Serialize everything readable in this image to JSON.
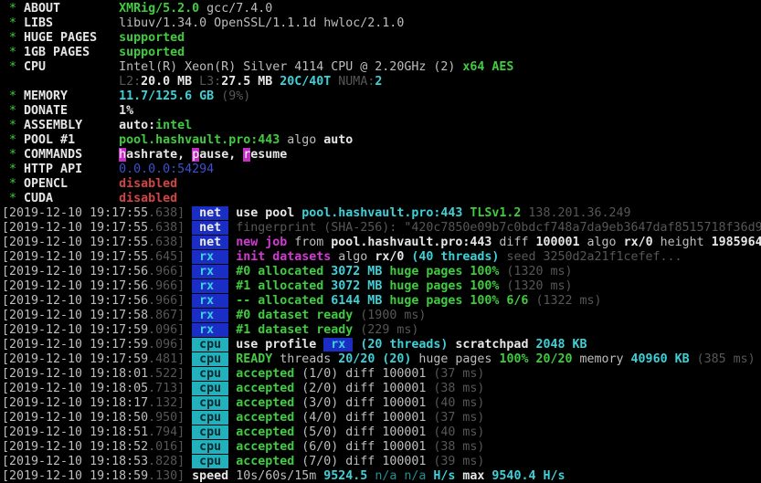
{
  "terminal": {
    "palette": {
      "background": "#000000",
      "foreground": "#bebebe",
      "green": "#3fcc3f",
      "cyan": "#3cd2d9",
      "dark_cyan": "#1f9097",
      "magenta": "#d23bd2",
      "red": "#d04545",
      "gray": "#575757",
      "blue": "#3c50d0",
      "badge_blue_bg": "#1a2ec6",
      "badge_cyan_bg": "#21b2bd",
      "highlight_magenta_bg": "#c32ec3"
    },
    "lines": [
      {
        "name": "header-about",
        "segments": [
          {
            "t": " * ",
            "c": "g"
          },
          {
            "t": "ABOUT        ",
            "c": "W"
          },
          {
            "t": "XMRig/5.2.0",
            "c": "G"
          },
          {
            "t": " gcc/7.4.0",
            "c": "w"
          }
        ]
      },
      {
        "name": "header-libs",
        "segments": [
          {
            "t": " * ",
            "c": "g"
          },
          {
            "t": "LIBS         ",
            "c": "W"
          },
          {
            "t": "libuv/1.34.0 OpenSSL/1.1.1d hwloc/2.1.0",
            "c": "w"
          }
        ]
      },
      {
        "name": "header-huge-pages",
        "segments": [
          {
            "t": " * ",
            "c": "g"
          },
          {
            "t": "HUGE PAGES   ",
            "c": "W"
          },
          {
            "t": "supported",
            "c": "G"
          }
        ]
      },
      {
        "name": "header-1gb-pages",
        "segments": [
          {
            "t": " * ",
            "c": "g"
          },
          {
            "t": "1GB PAGES    ",
            "c": "W"
          },
          {
            "t": "supported",
            "c": "G"
          }
        ]
      },
      {
        "name": "header-cpu",
        "segments": [
          {
            "t": " * ",
            "c": "g"
          },
          {
            "t": "CPU          ",
            "c": "W"
          },
          {
            "t": "Intel(R) Xeon(R) Silver 4114 CPU @ 2.20GHz (2) ",
            "c": "w"
          },
          {
            "t": "x64 AES",
            "c": "G"
          }
        ]
      },
      {
        "name": "header-cpu-cache",
        "segments": [
          {
            "t": "                ",
            "c": "w"
          },
          {
            "t": "L2:",
            "c": "k"
          },
          {
            "t": "20.0 MB ",
            "c": "W"
          },
          {
            "t": "L3:",
            "c": "k"
          },
          {
            "t": "27.5 MB ",
            "c": "W"
          },
          {
            "t": "20C/40T ",
            "c": "C"
          },
          {
            "t": "NUMA:",
            "c": "k"
          },
          {
            "t": "2",
            "c": "C"
          }
        ]
      },
      {
        "name": "header-memory",
        "segments": [
          {
            "t": " * ",
            "c": "g"
          },
          {
            "t": "MEMORY       ",
            "c": "W"
          },
          {
            "t": "11.7/125.6 GB ",
            "c": "C"
          },
          {
            "t": "(9%)",
            "c": "k"
          }
        ]
      },
      {
        "name": "header-donate",
        "segments": [
          {
            "t": " * ",
            "c": "g"
          },
          {
            "t": "DONATE       ",
            "c": "W"
          },
          {
            "t": "1%",
            "c": "W"
          }
        ]
      },
      {
        "name": "header-assembly",
        "segments": [
          {
            "t": " * ",
            "c": "g"
          },
          {
            "t": "ASSEMBLY     ",
            "c": "W"
          },
          {
            "t": "auto:",
            "c": "W"
          },
          {
            "t": "intel",
            "c": "G"
          }
        ]
      },
      {
        "name": "header-pool-1",
        "segments": [
          {
            "t": " * ",
            "c": "g"
          },
          {
            "t": "POOL #1      ",
            "c": "W"
          },
          {
            "t": "pool.hashvault.pro:443",
            "c": "G"
          },
          {
            "t": " algo ",
            "c": "w"
          },
          {
            "t": "auto",
            "c": "W"
          }
        ]
      },
      {
        "name": "header-commands",
        "segments": [
          {
            "t": " * ",
            "c": "g"
          },
          {
            "t": "COMMANDS     ",
            "c": "W"
          },
          {
            "t": "h",
            "c": "hl",
            "n": "hashrate-key"
          },
          {
            "t": "ashrate, ",
            "c": "W"
          },
          {
            "t": "p",
            "c": "hl",
            "n": "pause-key"
          },
          {
            "t": "ause, ",
            "c": "W"
          },
          {
            "t": "r",
            "c": "hl",
            "n": "resume-key"
          },
          {
            "t": "esume",
            "c": "W"
          }
        ]
      },
      {
        "name": "header-http-api",
        "segments": [
          {
            "t": " * ",
            "c": "g"
          },
          {
            "t": "HTTP API     ",
            "c": "W"
          },
          {
            "t": "0.0.0.0:54294",
            "c": "b"
          }
        ]
      },
      {
        "name": "header-opencl",
        "segments": [
          {
            "t": " * ",
            "c": "g"
          },
          {
            "t": "OPENCL       ",
            "c": "W"
          },
          {
            "t": "disabled",
            "c": "r"
          }
        ]
      },
      {
        "name": "header-cuda",
        "segments": [
          {
            "t": " * ",
            "c": "g"
          },
          {
            "t": "CUDA         ",
            "c": "W"
          },
          {
            "t": "disabled",
            "c": "r"
          }
        ]
      },
      {
        "name": "log-use-pool",
        "segments": [
          {
            "t": "[2019-12-10 19:17:55",
            "c": "w"
          },
          {
            "t": ".638] ",
            "c": "k"
          },
          {
            "t": " net ",
            "c": "bn",
            "n": "net-badge"
          },
          {
            "t": " use pool ",
            "c": "W"
          },
          {
            "t": "pool.hashvault.pro:443 ",
            "c": "C"
          },
          {
            "t": "TLSv1.2",
            "c": "G"
          },
          {
            "t": " 138.201.36.249",
            "c": "k"
          }
        ]
      },
      {
        "name": "log-fingerprint",
        "segments": [
          {
            "t": "[2019-12-10 19:17:55",
            "c": "w"
          },
          {
            "t": ".638] ",
            "c": "k"
          },
          {
            "t": " net ",
            "c": "bn",
            "n": "net-badge"
          },
          {
            "t": " fingerprint (SHA-256): \"420c7850e09b7c0bdcf748a7da9eb3647daf8515718f36d9",
            "c": "k"
          }
        ]
      },
      {
        "name": "log-new-job",
        "segments": [
          {
            "t": "[2019-12-10 19:17:55",
            "c": "w"
          },
          {
            "t": ".638] ",
            "c": "k"
          },
          {
            "t": " net ",
            "c": "bn",
            "n": "net-badge"
          },
          {
            "t": " ",
            "c": "w"
          },
          {
            "t": "new job",
            "c": "m"
          },
          {
            "t": " from ",
            "c": "w"
          },
          {
            "t": "pool.hashvault.pro:443",
            "c": "W"
          },
          {
            "t": " diff ",
            "c": "w"
          },
          {
            "t": "100001",
            "c": "W"
          },
          {
            "t": " algo ",
            "c": "w"
          },
          {
            "t": "rx/0",
            "c": "W"
          },
          {
            "t": " height ",
            "c": "w"
          },
          {
            "t": "1985964",
            "c": "W"
          }
        ]
      },
      {
        "name": "log-init-datasets",
        "segments": [
          {
            "t": "[2019-12-10 19:17:55",
            "c": "w"
          },
          {
            "t": ".645] ",
            "c": "k"
          },
          {
            "t": " rx  ",
            "c": "brx",
            "n": "rx-badge"
          },
          {
            "t": " ",
            "c": "w"
          },
          {
            "t": "init datasets",
            "c": "m"
          },
          {
            "t": " algo ",
            "c": "w"
          },
          {
            "t": "rx/0 ",
            "c": "W"
          },
          {
            "t": "(40 threads) ",
            "c": "C"
          },
          {
            "t": "seed 3250d2a21f1cefef...",
            "c": "k"
          }
        ]
      },
      {
        "name": "log-dataset-0-alloc",
        "segments": [
          {
            "t": "[2019-12-10 19:17:56",
            "c": "w"
          },
          {
            "t": ".966] ",
            "c": "k"
          },
          {
            "t": " rx  ",
            "c": "brx",
            "n": "rx-badge"
          },
          {
            "t": " ",
            "c": "w"
          },
          {
            "t": "#0 allocated ",
            "c": "G"
          },
          {
            "t": "3072 MB ",
            "c": "C"
          },
          {
            "t": "huge pages 100% ",
            "c": "G"
          },
          {
            "t": "(1320 ms)",
            "c": "k"
          }
        ]
      },
      {
        "name": "log-dataset-1-alloc",
        "segments": [
          {
            "t": "[2019-12-10 19:17:56",
            "c": "w"
          },
          {
            "t": ".966] ",
            "c": "k"
          },
          {
            "t": " rx  ",
            "c": "brx",
            "n": "rx-badge"
          },
          {
            "t": " ",
            "c": "w"
          },
          {
            "t": "#1 allocated ",
            "c": "G"
          },
          {
            "t": "3072 MB ",
            "c": "C"
          },
          {
            "t": "huge pages 100% ",
            "c": "G"
          },
          {
            "t": "(1320 ms)",
            "c": "k"
          }
        ]
      },
      {
        "name": "log-dataset-total-alloc",
        "segments": [
          {
            "t": "[2019-12-10 19:17:56",
            "c": "w"
          },
          {
            "t": ".966] ",
            "c": "k"
          },
          {
            "t": " rx  ",
            "c": "brx",
            "n": "rx-badge"
          },
          {
            "t": " ",
            "c": "w"
          },
          {
            "t": "-- allocated ",
            "c": "G"
          },
          {
            "t": "6144 MB ",
            "c": "C"
          },
          {
            "t": "huge pages 100% 6/6 ",
            "c": "G"
          },
          {
            "t": "(1322 ms)",
            "c": "k"
          }
        ]
      },
      {
        "name": "log-dataset-0-ready",
        "segments": [
          {
            "t": "[2019-12-10 19:17:58",
            "c": "w"
          },
          {
            "t": ".867] ",
            "c": "k"
          },
          {
            "t": " rx  ",
            "c": "brx",
            "n": "rx-badge"
          },
          {
            "t": " ",
            "c": "w"
          },
          {
            "t": "#0 dataset ready ",
            "c": "G"
          },
          {
            "t": "(1900 ms)",
            "c": "k"
          }
        ]
      },
      {
        "name": "log-dataset-1-ready",
        "segments": [
          {
            "t": "[2019-12-10 19:17:59",
            "c": "w"
          },
          {
            "t": ".096] ",
            "c": "k"
          },
          {
            "t": " rx  ",
            "c": "brx",
            "n": "rx-badge"
          },
          {
            "t": " ",
            "c": "w"
          },
          {
            "t": "#1 dataset ready ",
            "c": "G"
          },
          {
            "t": "(229 ms)",
            "c": "k"
          }
        ]
      },
      {
        "name": "log-cpu-profile",
        "segments": [
          {
            "t": "[2019-12-10 19:17:59",
            "c": "w"
          },
          {
            "t": ".096] ",
            "c": "k"
          },
          {
            "t": " cpu ",
            "c": "bcpu",
            "n": "cpu-badge"
          },
          {
            "t": " use profile ",
            "c": "W"
          },
          {
            "t": " rx ",
            "c": "brx",
            "n": "rx-profile-badge"
          },
          {
            "t": " ",
            "c": "w"
          },
          {
            "t": "(20 threads) ",
            "c": "C"
          },
          {
            "t": "scratchpad ",
            "c": "W"
          },
          {
            "t": "2048 KB",
            "c": "C"
          }
        ]
      },
      {
        "name": "log-cpu-ready",
        "segments": [
          {
            "t": "[2019-12-10 19:17:59",
            "c": "w"
          },
          {
            "t": ".481] ",
            "c": "k"
          },
          {
            "t": " cpu ",
            "c": "bcpu",
            "n": "cpu-badge"
          },
          {
            "t": " ",
            "c": "w"
          },
          {
            "t": "READY",
            "c": "G"
          },
          {
            "t": " threads ",
            "c": "w"
          },
          {
            "t": "20/20 (20)",
            "c": "C"
          },
          {
            "t": " huge pages ",
            "c": "w"
          },
          {
            "t": "100% 20/20",
            "c": "G"
          },
          {
            "t": " memory ",
            "c": "w"
          },
          {
            "t": "40960 KB ",
            "c": "C"
          },
          {
            "t": "(385 ms)",
            "c": "k"
          }
        ]
      },
      {
        "name": "log-accepted-1",
        "segments": [
          {
            "t": "[2019-12-10 19:18:01",
            "c": "w"
          },
          {
            "t": ".522] ",
            "c": "k"
          },
          {
            "t": " cpu ",
            "c": "bcpu",
            "n": "cpu-badge"
          },
          {
            "t": " ",
            "c": "w"
          },
          {
            "t": "accepted",
            "c": "G"
          },
          {
            "t": " (1/0) diff 100001 ",
            "c": "w"
          },
          {
            "t": "(37 ms)",
            "c": "k"
          }
        ]
      },
      {
        "name": "log-accepted-2",
        "segments": [
          {
            "t": "[2019-12-10 19:18:05",
            "c": "w"
          },
          {
            "t": ".713] ",
            "c": "k"
          },
          {
            "t": " cpu ",
            "c": "bcpu",
            "n": "cpu-badge"
          },
          {
            "t": " ",
            "c": "w"
          },
          {
            "t": "accepted",
            "c": "G"
          },
          {
            "t": " (2/0) diff 100001 ",
            "c": "w"
          },
          {
            "t": "(38 ms)",
            "c": "k"
          }
        ]
      },
      {
        "name": "log-accepted-3",
        "segments": [
          {
            "t": "[2019-12-10 19:18:17",
            "c": "w"
          },
          {
            "t": ".132] ",
            "c": "k"
          },
          {
            "t": " cpu ",
            "c": "bcpu",
            "n": "cpu-badge"
          },
          {
            "t": " ",
            "c": "w"
          },
          {
            "t": "accepted",
            "c": "G"
          },
          {
            "t": " (3/0) diff 100001 ",
            "c": "w"
          },
          {
            "t": "(40 ms)",
            "c": "k"
          }
        ]
      },
      {
        "name": "log-accepted-4",
        "segments": [
          {
            "t": "[2019-12-10 19:18:50",
            "c": "w"
          },
          {
            "t": ".950] ",
            "c": "k"
          },
          {
            "t": " cpu ",
            "c": "bcpu",
            "n": "cpu-badge"
          },
          {
            "t": " ",
            "c": "w"
          },
          {
            "t": "accepted",
            "c": "G"
          },
          {
            "t": " (4/0) diff 100001 ",
            "c": "w"
          },
          {
            "t": "(37 ms)",
            "c": "k"
          }
        ]
      },
      {
        "name": "log-accepted-5",
        "segments": [
          {
            "t": "[2019-12-10 19:18:51",
            "c": "w"
          },
          {
            "t": ".794] ",
            "c": "k"
          },
          {
            "t": " cpu ",
            "c": "bcpu",
            "n": "cpu-badge"
          },
          {
            "t": " ",
            "c": "w"
          },
          {
            "t": "accepted",
            "c": "G"
          },
          {
            "t": " (5/0) diff 100001 ",
            "c": "w"
          },
          {
            "t": "(40 ms)",
            "c": "k"
          }
        ]
      },
      {
        "name": "log-accepted-6",
        "segments": [
          {
            "t": "[2019-12-10 19:18:52",
            "c": "w"
          },
          {
            "t": ".016] ",
            "c": "k"
          },
          {
            "t": " cpu ",
            "c": "bcpu",
            "n": "cpu-badge"
          },
          {
            "t": " ",
            "c": "w"
          },
          {
            "t": "accepted",
            "c": "G"
          },
          {
            "t": " (6/0) diff 100001 ",
            "c": "w"
          },
          {
            "t": "(38 ms)",
            "c": "k"
          }
        ]
      },
      {
        "name": "log-accepted-7",
        "segments": [
          {
            "t": "[2019-12-10 19:18:53",
            "c": "w"
          },
          {
            "t": ".828] ",
            "c": "k"
          },
          {
            "t": " cpu ",
            "c": "bcpu",
            "n": "cpu-badge"
          },
          {
            "t": " ",
            "c": "w"
          },
          {
            "t": "accepted",
            "c": "G"
          },
          {
            "t": " (7/0) diff 100001 ",
            "c": "w"
          },
          {
            "t": "(39 ms)",
            "c": "k"
          }
        ]
      },
      {
        "name": "log-speed",
        "segments": [
          {
            "t": "[2019-12-10 19:18:59",
            "c": "w"
          },
          {
            "t": ".130] ",
            "c": "k"
          },
          {
            "t": "speed",
            "c": "W"
          },
          {
            "t": " 10s/60s/15m ",
            "c": "w"
          },
          {
            "t": "9524.5 ",
            "c": "C"
          },
          {
            "t": "n/a n/a ",
            "c": "dc"
          },
          {
            "t": "H/s",
            "c": "C"
          },
          {
            "t": " max ",
            "c": "W"
          },
          {
            "t": "9540.4 H/s",
            "c": "C"
          }
        ]
      }
    ]
  }
}
